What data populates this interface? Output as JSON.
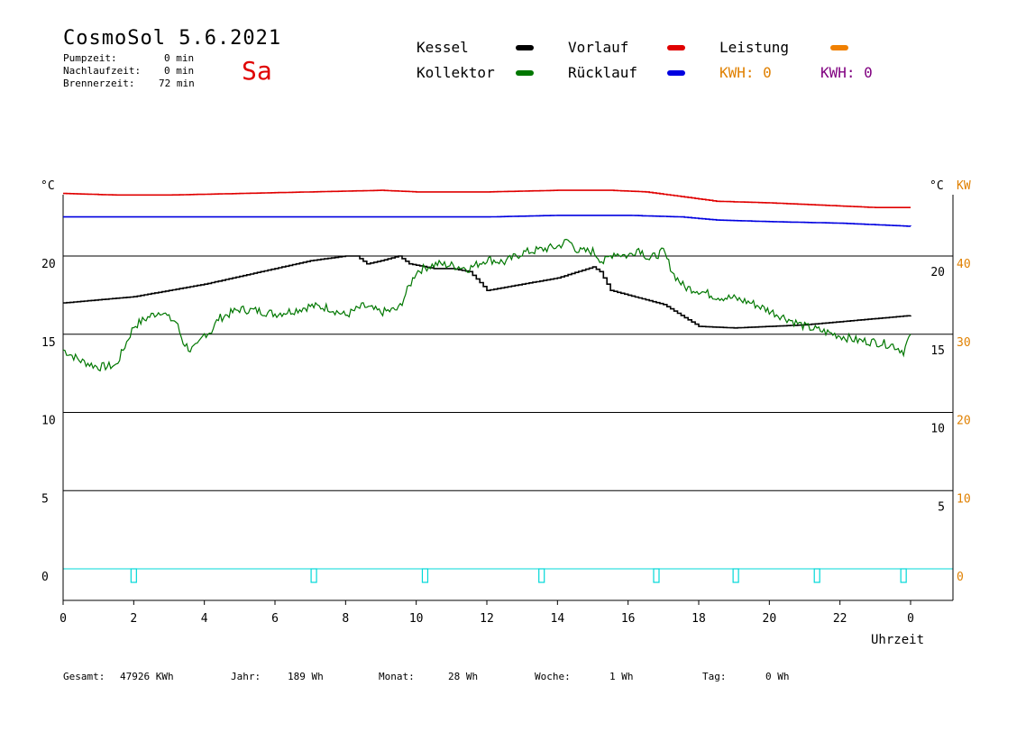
{
  "header": {
    "title": "CosmoSol 5.6.2021",
    "day": "Sa",
    "pumpzeit_label": "Pumpzeit:",
    "pumpzeit_value": "0 min",
    "nachlaufzeit_label": "Nachlaufzeit:",
    "nachlaufzeit_value": "0 min",
    "brennerzeit_label": "Brennerzeit:",
    "brennerzeit_value": "72 min"
  },
  "legend": {
    "kessel": "Kessel",
    "kollektor": "Kollektor",
    "vorlauf": "Vorlauf",
    "ruecklauf": "Rücklauf",
    "leistung": "Leistung",
    "kwh_orange": "KWH: 0",
    "kwh_purple": "KWH: 0",
    "colors": {
      "kessel": "#000000",
      "kollektor": "#007700",
      "vorlauf": "#e00000",
      "ruecklauf": "#0000e0",
      "leistung": "#f08000",
      "kwh_orange": "#e08000",
      "kwh_purple": "#800080"
    }
  },
  "footer": {
    "gesamt_label": "Gesamt:",
    "gesamt_value": "47926 KWh",
    "jahr_label": "Jahr:",
    "jahr_value": "189 Wh",
    "monat_label": "Monat:",
    "monat_value": "28 Wh",
    "woche_label": "Woche:",
    "woche_value": "1 Wh",
    "tag_label": "Tag:",
    "tag_value": "0 Wh"
  },
  "chart_data": {
    "type": "line",
    "xlabel": "Uhrzeit",
    "x_ticks": [
      "0",
      "2",
      "4",
      "6",
      "8",
      "10",
      "12",
      "14",
      "16",
      "18",
      "20",
      "22",
      "0"
    ],
    "xlim": [
      0,
      24
    ],
    "ylabel_left": "°C",
    "ylabel_right_c": "°C",
    "ylabel_right_kw": "KW",
    "y_ticks_left": [
      "0",
      "5",
      "10",
      "15",
      "20"
    ],
    "y_ticks_right_c": [
      "5",
      "10",
      "15",
      "20"
    ],
    "y_ticks_right_kw": [
      "0",
      "10",
      "20",
      "30",
      "40"
    ],
    "ylim": [
      -2,
      25
    ],
    "grid": "horizontal",
    "series": [
      {
        "name": "Vorlauf",
        "color": "#e00000",
        "x": [
          0,
          1.5,
          3,
          5,
          7,
          9,
          10,
          12,
          14,
          15.5,
          16.5,
          17.5,
          18.5,
          20,
          21,
          22,
          23,
          24
        ],
        "y": [
          24.0,
          23.9,
          23.9,
          24.0,
          24.1,
          24.2,
          24.1,
          24.1,
          24.2,
          24.2,
          24.1,
          23.8,
          23.5,
          23.4,
          23.3,
          23.2,
          23.1,
          23.1
        ]
      },
      {
        "name": "Rücklauf",
        "color": "#0000e0",
        "x": [
          0,
          2,
          5,
          8,
          10,
          12,
          14,
          16,
          17.5,
          18.5,
          20,
          22,
          24
        ],
        "y": [
          22.5,
          22.5,
          22.5,
          22.5,
          22.5,
          22.5,
          22.6,
          22.6,
          22.5,
          22.3,
          22.2,
          22.1,
          21.9
        ]
      },
      {
        "name": "Kessel",
        "color": "#000000",
        "x": [
          0,
          1,
          2,
          3,
          4,
          5,
          6,
          7,
          8,
          8.3,
          8.6,
          9,
          9.5,
          9.8,
          10.5,
          11,
          11.5,
          11.8,
          12,
          13,
          14,
          15,
          15.2,
          15.5,
          16,
          16.5,
          17,
          17.5,
          18,
          19,
          20,
          21,
          22,
          23,
          24
        ],
        "y": [
          17.0,
          17.2,
          17.4,
          17.8,
          18.2,
          18.7,
          19.2,
          19.7,
          20.0,
          20.0,
          19.5,
          19.7,
          20.0,
          19.5,
          19.2,
          19.2,
          19.0,
          18.3,
          17.8,
          18.2,
          18.6,
          19.3,
          19.0,
          17.8,
          17.5,
          17.2,
          16.9,
          16.2,
          15.5,
          15.4,
          15.5,
          15.6,
          15.8,
          16.0,
          16.2
        ]
      },
      {
        "name": "Kollektor",
        "color": "#007700",
        "x": [
          0,
          0.5,
          1,
          1.5,
          1.8,
          2,
          2.2,
          2.5,
          2.8,
          3,
          3.2,
          3.4,
          3.6,
          3.8,
          4,
          4.2,
          4.4,
          5,
          5.5,
          6,
          6.5,
          7,
          7.5,
          8,
          8.5,
          9,
          9.5,
          10,
          10.3,
          10.6,
          11,
          11.5,
          12,
          12.5,
          13,
          13.5,
          14,
          14.3,
          14.6,
          15,
          15.3,
          15.6,
          16,
          16.3,
          16.6,
          17,
          17.3,
          17.6,
          18,
          18.5,
          19,
          19.5,
          20,
          20.5,
          21,
          21.5,
          22,
          22.5,
          23,
          23.5,
          23.8,
          24
        ],
        "y": [
          14.0,
          13.3,
          12.9,
          13.0,
          14.5,
          15.5,
          15.8,
          16.2,
          16.5,
          16.0,
          15.8,
          14.5,
          14.0,
          14.2,
          15.0,
          15.2,
          16.0,
          16.6,
          16.5,
          16.3,
          16.5,
          16.8,
          16.7,
          16.2,
          16.8,
          16.4,
          16.6,
          19.0,
          19.3,
          19.5,
          19.4,
          19.2,
          19.8,
          19.6,
          20.2,
          20.4,
          20.6,
          21.0,
          20.3,
          20.3,
          19.6,
          20.2,
          20.0,
          20.5,
          19.8,
          20.3,
          18.8,
          18.0,
          17.8,
          17.4,
          17.3,
          17.0,
          16.5,
          16.0,
          15.5,
          15.2,
          14.9,
          14.6,
          14.5,
          14.3,
          13.9,
          15.0
        ]
      }
    ],
    "burner_markers_hours": [
      2.0,
      7.1,
      10.25,
      13.55,
      16.8,
      19.05,
      21.35,
      23.8
    ]
  }
}
